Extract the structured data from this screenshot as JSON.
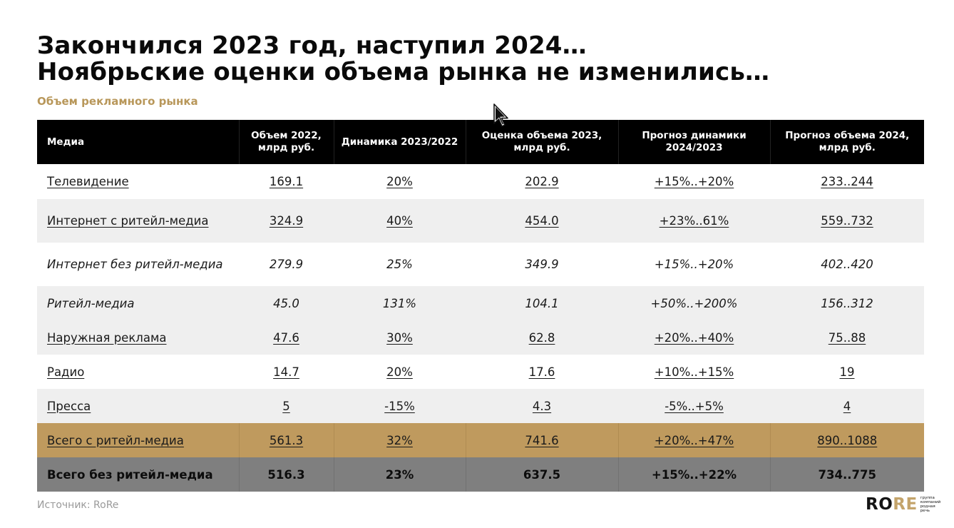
{
  "title": {
    "line1": "Закончился 2023 год, наступил 2024…",
    "line2": "Ноябрьские оценки объема рынка не изменились…"
  },
  "subtitle": "Объем рекламного рынка",
  "table": {
    "headers": [
      "Медиа",
      "Объем 2022, млрд руб.",
      "Динамика 2023/2022",
      "Оценка объема 2023, млрд руб.",
      "Прогноз динамики 2024/2023",
      "Прогноз объема 2024, млрд руб."
    ],
    "rows": [
      [
        "Телевидение",
        "169.1",
        "20%",
        "202.9",
        "+15%..+20%",
        "233..244"
      ],
      [
        "Интернет с ритейл-медиа",
        "324.9",
        "40%",
        "454.0",
        "+23%..61%",
        "559..732"
      ],
      [
        "Интернет без ритейл-медиа",
        "279.9",
        "25%",
        "349.9",
        "+15%..+20%",
        "402..420"
      ],
      [
        "Ритейл-медиа",
        "45.0",
        "131%",
        "104.1",
        "+50%..+200%",
        "156..312"
      ],
      [
        "Наружная реклама",
        "47.6",
        "30%",
        "62.8",
        "+20%..+40%",
        "75..88"
      ],
      [
        "Радио",
        "14.7",
        "20%",
        "17.6",
        "+10%..+15%",
        "19"
      ],
      [
        "Пресса",
        "5",
        "-15%",
        "4.3",
        "-5%..+5%",
        "4"
      ],
      [
        "Всего с ритейл-медиа",
        "561.3",
        "32%",
        "741.6",
        "+20%..+47%",
        "890..1088"
      ],
      [
        "Всего без ритейл-медиа",
        "516.3",
        "23%",
        "637.5",
        "+15%..+22%",
        "734..775"
      ]
    ]
  },
  "source": "Источник:  RoRe",
  "logo": {
    "word_dark": "RO",
    "word_gold": "RE",
    "tagline": "группа компаний родная речь"
  },
  "colors": {
    "accent_gold": "#bf9a5e",
    "subtitle_gold": "#b8975a",
    "header_bg": "#000000",
    "total_dark": "#7f7f7f"
  },
  "icons": {
    "cursor": "mouse-pointer-icon"
  }
}
